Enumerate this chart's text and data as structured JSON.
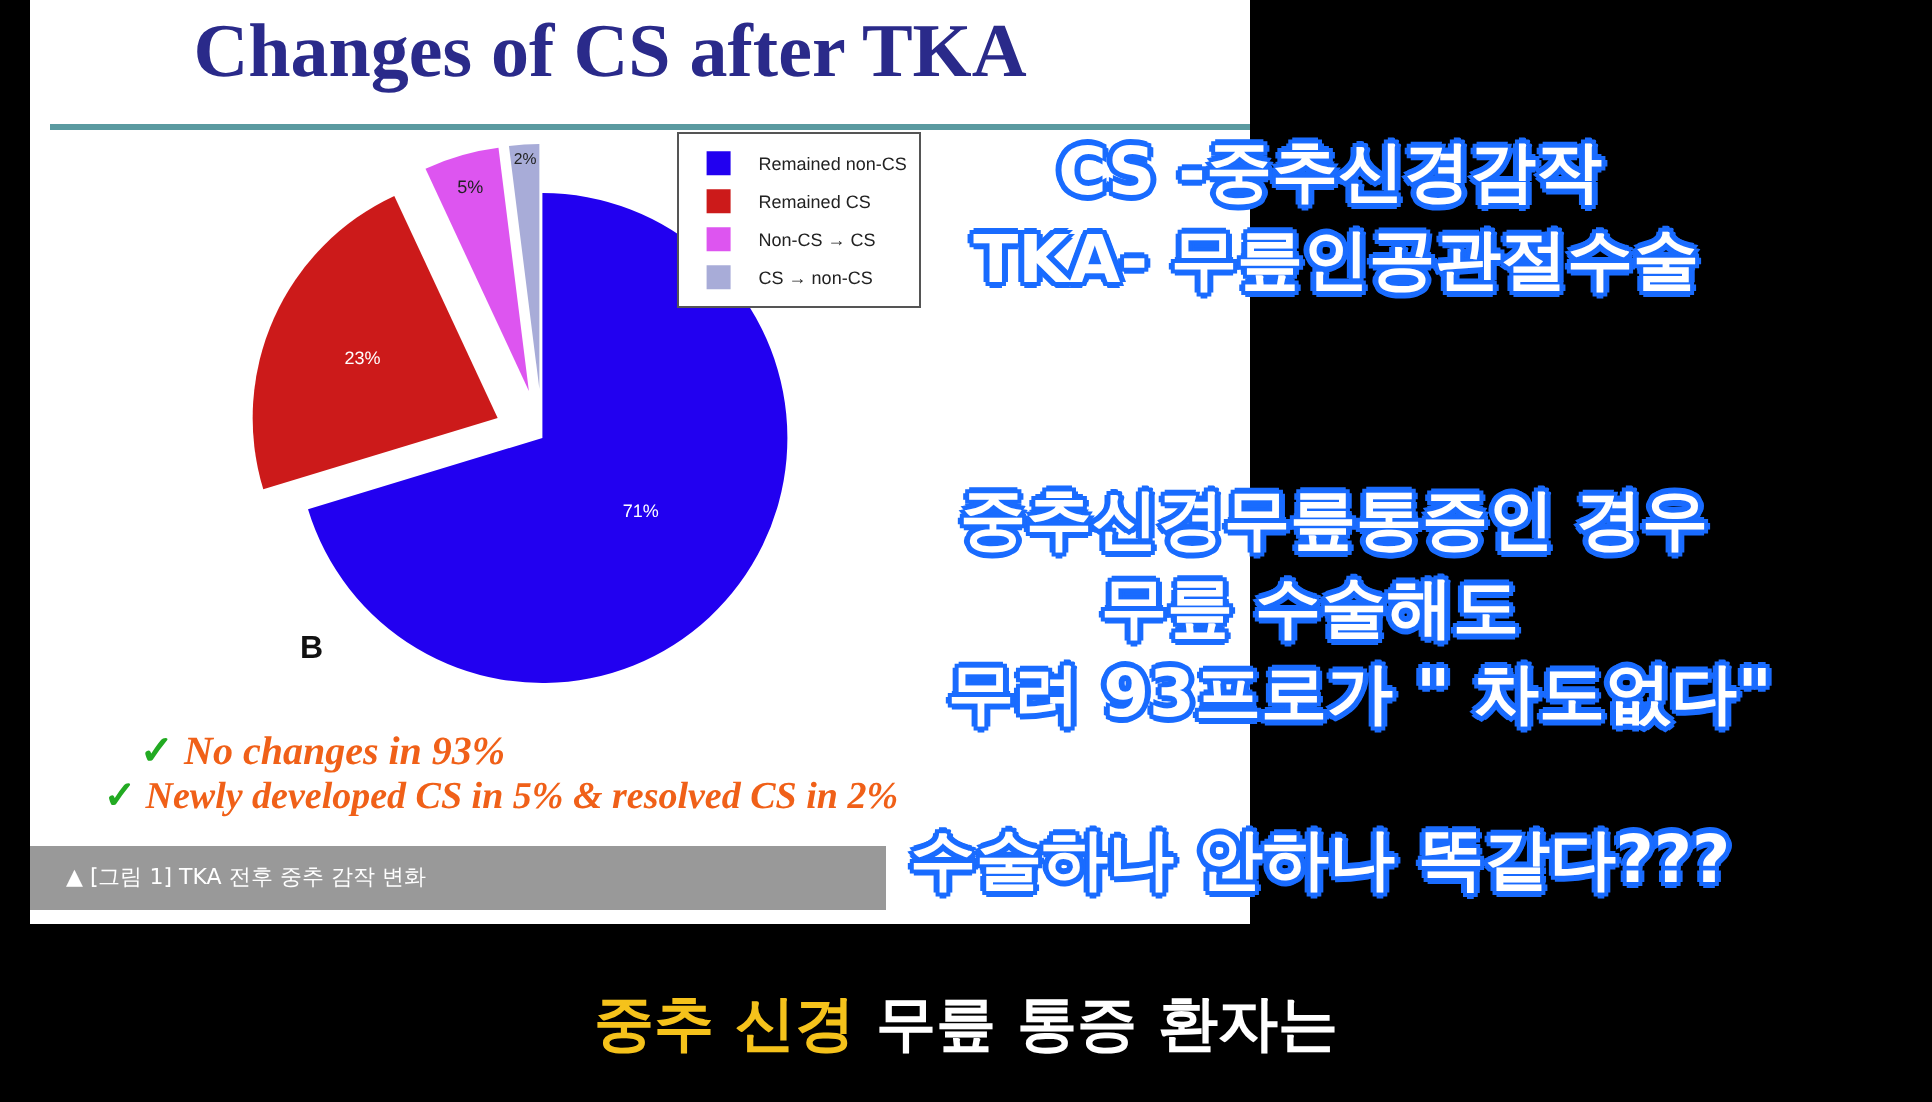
{
  "chart_data": {
    "type": "pie",
    "title": "Changes of CS after TKA",
    "categories": [
      "Remained non-CS",
      "Remained CS",
      "Non-CS → CS",
      "CS → non-CS"
    ],
    "values": [
      71,
      23,
      5,
      2
    ],
    "colors": [
      "#2200f0",
      "#cc1a1a",
      "#dd55f0",
      "#a8acd8"
    ],
    "value_labels": [
      "71%",
      "23%",
      "5%",
      "2%"
    ],
    "legend": "top right",
    "annotations": [
      "✓ No changes in 93%",
      "✓ Newly developed CS in 5% & resolved CS in 2%",
      "▲ [그림 1] TKA 전후 중추 감작 변화",
      "B",
      "CS -중추신경감작",
      "TKA- 무릎인공관절수술",
      "중추신경무릎통증인 경우",
      "무릎 수술해도",
      "무려 93프로가  \" 차도없다\"",
      "수술하나 안하나 똑같다???",
      "중추 신경",
      "무릎 통증 환자는"
    ]
  }
}
